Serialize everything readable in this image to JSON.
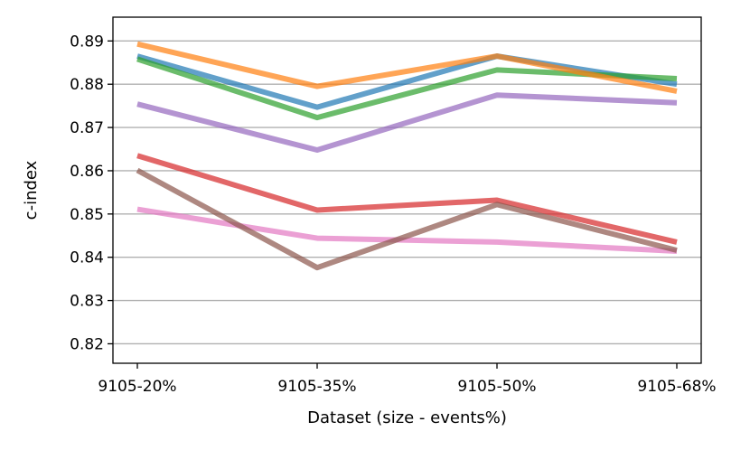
{
  "chart_data": {
    "type": "line",
    "title": "",
    "xlabel": "Dataset (size - events%)",
    "ylabel": "c-index",
    "categories": [
      "9105-20%",
      "9105-35%",
      "9105-50%",
      "9105-68%"
    ],
    "ylim": [
      0.8155,
      0.8955
    ],
    "yticks": [
      0.82,
      0.83,
      0.84,
      0.85,
      0.86,
      0.87,
      0.88,
      0.89
    ],
    "ytick_labels": [
      "0.82",
      "0.83",
      "0.84",
      "0.85",
      "0.86",
      "0.87",
      "0.88",
      "0.89"
    ],
    "grid": "horizontal",
    "legend": "none",
    "series": [
      {
        "color": "#1f77b4",
        "values": [
          0.8865,
          0.8747,
          0.8865,
          0.88
        ]
      },
      {
        "color": "#2ca02c",
        "values": [
          0.8858,
          0.8723,
          0.8833,
          0.8813
        ]
      },
      {
        "color": "#ff7f0e",
        "values": [
          0.8893,
          0.8795,
          0.8865,
          0.8784
        ]
      },
      {
        "color": "#9467bd",
        "values": [
          0.8754,
          0.8648,
          0.8775,
          0.8757
        ]
      },
      {
        "color": "#d62728",
        "values": [
          0.8635,
          0.8509,
          0.8532,
          0.8435
        ]
      },
      {
        "color": "#e377c2",
        "values": [
          0.8511,
          0.8444,
          0.8435,
          0.8414
        ]
      },
      {
        "color": "#8c564b",
        "values": [
          0.8601,
          0.8376,
          0.8522,
          0.8416
        ]
      }
    ]
  }
}
